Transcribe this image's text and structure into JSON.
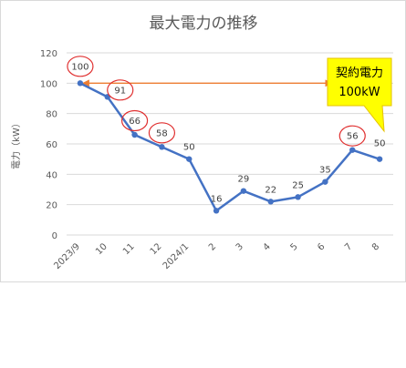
{
  "chart_data": {
    "type": "line",
    "title": "最大電力の推移",
    "ylabel": "電力（kW）",
    "xlabel": "",
    "categories": [
      "2023/9",
      "10",
      "11",
      "12",
      "2024/1",
      "2",
      "3",
      "4",
      "5",
      "6",
      "7",
      "8"
    ],
    "series": [
      {
        "values": [
          100,
          91,
          66,
          58,
          50,
          16,
          29,
          22,
          25,
          35,
          56,
          50
        ]
      }
    ],
    "ylim": [
      0,
      120
    ],
    "yticks": [
      0,
      20,
      40,
      60,
      80,
      100,
      120
    ],
    "grid": true,
    "legend": "none",
    "circled_points": [
      0,
      1,
      2,
      3,
      10
    ],
    "reference_arrow": {
      "from_index": 0,
      "to_index": 9,
      "value": 100
    },
    "callout": {
      "line1": "契約電力",
      "line2": "100kW"
    }
  },
  "colors": {
    "line": "#4472c4",
    "grid": "#d9d9d9",
    "arrow": "#ed7d31",
    "circle": "#e03030",
    "callout_fill": "#ffff00",
    "callout_border": "#e6c200"
  }
}
